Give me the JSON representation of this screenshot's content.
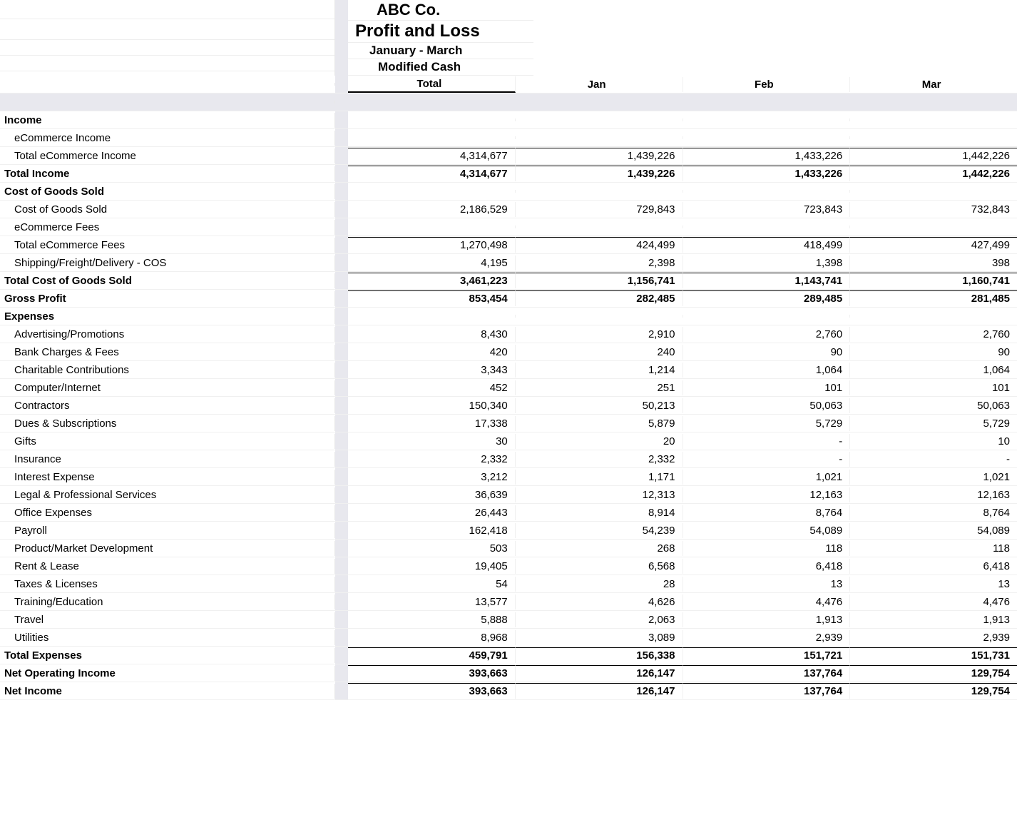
{
  "header": {
    "company": "ABC Co.",
    "report": "Profit and Loss",
    "period": "January - March",
    "basis": "Modified Cash"
  },
  "columns": {
    "total": "Total",
    "c1": "Jan",
    "c2": "Feb",
    "c3": "Mar"
  },
  "rows": [
    {
      "label": "Income",
      "indent": 0,
      "bold": true
    },
    {
      "label": "eCommerce Income",
      "indent": 1
    },
    {
      "label": "Total eCommerce Income",
      "indent": 1,
      "total": "4,314,677",
      "c1": "1,439,226",
      "c2": "1,433,226",
      "c3": "1,442,226",
      "topline": true
    },
    {
      "label": "Total Income",
      "indent": 0,
      "bold": true,
      "total": "4,314,677",
      "c1": "1,439,226",
      "c2": "1,433,226",
      "c3": "1,442,226",
      "topline": true
    },
    {
      "label": "Cost of Goods Sold",
      "indent": 0,
      "bold": true
    },
    {
      "label": "Cost of Goods Sold",
      "indent": 1,
      "total": "2,186,529",
      "c1": "729,843",
      "c2": "723,843",
      "c3": "732,843"
    },
    {
      "label": "eCommerce Fees",
      "indent": 1
    },
    {
      "label": "Total eCommerce Fees",
      "indent": 1,
      "total": "1,270,498",
      "c1": "424,499",
      "c2": "418,499",
      "c3": "427,499",
      "topline": true
    },
    {
      "label": "Shipping/Freight/Delivery - COS",
      "indent": 1,
      "total": "4,195",
      "c1": "2,398",
      "c2": "1,398",
      "c3": "398"
    },
    {
      "label": "Total Cost of Goods Sold",
      "indent": 0,
      "bold": true,
      "total": "3,461,223",
      "c1": "1,156,741",
      "c2": "1,143,741",
      "c3": "1,160,741",
      "topline": true
    },
    {
      "label": "Gross Profit",
      "indent": 0,
      "bold": true,
      "total": "853,454",
      "c1": "282,485",
      "c2": "289,485",
      "c3": "281,485",
      "topline": true
    },
    {
      "label": "Expenses",
      "indent": 0,
      "bold": true
    },
    {
      "label": "Advertising/Promotions",
      "indent": 1,
      "total": "8,430",
      "c1": "2,910",
      "c2": "2,760",
      "c3": "2,760"
    },
    {
      "label": "Bank Charges & Fees",
      "indent": 1,
      "total": "420",
      "c1": "240",
      "c2": "90",
      "c3": "90"
    },
    {
      "label": "Charitable Contributions",
      "indent": 1,
      "total": "3,343",
      "c1": "1,214",
      "c2": "1,064",
      "c3": "1,064"
    },
    {
      "label": "Computer/Internet",
      "indent": 1,
      "total": "452",
      "c1": "251",
      "c2": "101",
      "c3": "101"
    },
    {
      "label": "Contractors",
      "indent": 1,
      "total": "150,340",
      "c1": "50,213",
      "c2": "50,063",
      "c3": "50,063"
    },
    {
      "label": "Dues & Subscriptions",
      "indent": 1,
      "total": "17,338",
      "c1": "5,879",
      "c2": "5,729",
      "c3": "5,729"
    },
    {
      "label": "Gifts",
      "indent": 1,
      "total": "30",
      "c1": "20",
      "c2": "-",
      "c3": "10"
    },
    {
      "label": "Insurance",
      "indent": 1,
      "total": "2,332",
      "c1": "2,332",
      "c2": "-",
      "c3": "-"
    },
    {
      "label": "Interest Expense",
      "indent": 1,
      "total": "3,212",
      "c1": "1,171",
      "c2": "1,021",
      "c3": "1,021"
    },
    {
      "label": "Legal & Professional Services",
      "indent": 1,
      "total": "36,639",
      "c1": "12,313",
      "c2": "12,163",
      "c3": "12,163"
    },
    {
      "label": "Office Expenses",
      "indent": 1,
      "total": "26,443",
      "c1": "8,914",
      "c2": "8,764",
      "c3": "8,764"
    },
    {
      "label": "Payroll",
      "indent": 1,
      "total": "162,418",
      "c1": "54,239",
      "c2": "54,089",
      "c3": "54,089"
    },
    {
      "label": "Product/Market Development",
      "indent": 1,
      "total": "503",
      "c1": "268",
      "c2": "118",
      "c3": "118"
    },
    {
      "label": "Rent & Lease",
      "indent": 1,
      "total": "19,405",
      "c1": "6,568",
      "c2": "6,418",
      "c3": "6,418"
    },
    {
      "label": "Taxes & Licenses",
      "indent": 1,
      "total": "54",
      "c1": "28",
      "c2": "13",
      "c3": "13"
    },
    {
      "label": "Training/Education",
      "indent": 1,
      "total": "13,577",
      "c1": "4,626",
      "c2": "4,476",
      "c3": "4,476"
    },
    {
      "label": "Travel",
      "indent": 1,
      "total": "5,888",
      "c1": "2,063",
      "c2": "1,913",
      "c3": "1,913"
    },
    {
      "label": "Utilities",
      "indent": 1,
      "total": "8,968",
      "c1": "3,089",
      "c2": "2,939",
      "c3": "2,939"
    },
    {
      "label": "Total Expenses",
      "indent": 0,
      "bold": true,
      "total": "459,791",
      "c1": "156,338",
      "c2": "151,721",
      "c3": "151,731",
      "topline": true
    },
    {
      "label": "Net Operating Income",
      "indent": 0,
      "bold": true,
      "total": "393,663",
      "c1": "126,147",
      "c2": "137,764",
      "c3": "129,754",
      "topline": true
    },
    {
      "label": "Net Income",
      "indent": 0,
      "bold": true,
      "total": "393,663",
      "c1": "126,147",
      "c2": "137,764",
      "c3": "129,754",
      "topline": true
    }
  ]
}
